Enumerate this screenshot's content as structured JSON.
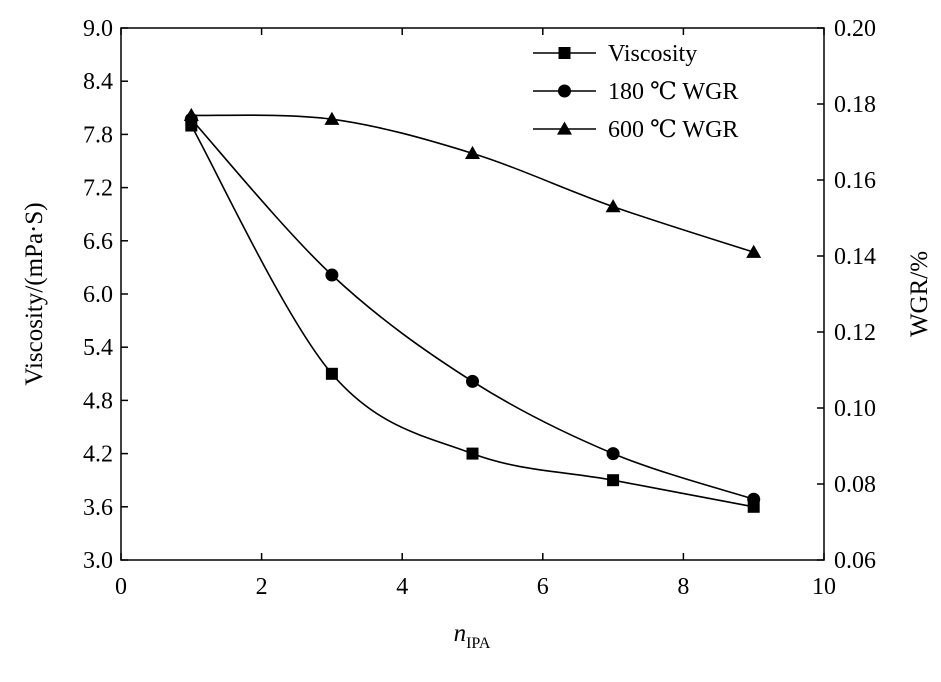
{
  "chart_data": {
    "type": "line",
    "title": "",
    "xlabel": "n",
    "xlabel_subscript": "IPA",
    "ylabel_left": "Viscosity/(mPa·S)",
    "ylabel_right": "WGR/%",
    "xlim": [
      0,
      10
    ],
    "ylim_left": [
      3.0,
      9.0
    ],
    "ylim_right": [
      0.06,
      0.2
    ],
    "x_ticks": [
      0,
      2,
      4,
      6,
      8,
      10
    ],
    "y_left_ticks": [
      "3.0",
      "3.6",
      "4.2",
      "4.8",
      "5.4",
      "6.0",
      "6.6",
      "7.2",
      "7.8",
      "8.4",
      "9.0"
    ],
    "y_right_ticks": [
      "0.06",
      "0.08",
      "0.10",
      "0.12",
      "0.14",
      "0.16",
      "0.18",
      "0.20"
    ],
    "grid": false,
    "legend_position": "top-right",
    "x": [
      1,
      3,
      5,
      7,
      9
    ],
    "series": [
      {
        "name": "Viscosity",
        "axis": "left",
        "marker": "square",
        "values": [
          7.9,
          5.1,
          4.2,
          3.9,
          3.6
        ]
      },
      {
        "name": "180 ℃ WGR",
        "axis": "right",
        "marker": "circle",
        "values": [
          0.176,
          0.135,
          0.107,
          0.088,
          0.076
        ]
      },
      {
        "name": "600 ℃ WGR",
        "axis": "right",
        "marker": "triangle",
        "values": [
          0.177,
          0.176,
          0.167,
          0.153,
          0.141
        ]
      }
    ]
  }
}
